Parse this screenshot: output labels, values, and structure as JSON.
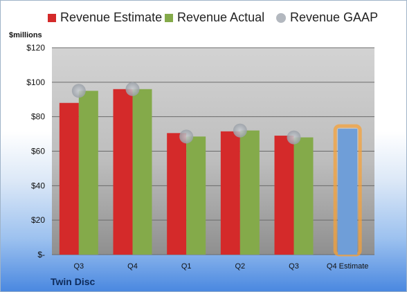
{
  "chart_data": {
    "type": "bar",
    "categories": [
      "Q3",
      "Q4",
      "Q1",
      "Q2",
      "Q3",
      "Q4 Estimate"
    ],
    "series": [
      {
        "name": "Revenue Estimate",
        "color": "#d42a2a",
        "values": [
          88,
          96,
          70.5,
          71.5,
          69,
          null
        ]
      },
      {
        "name": "Revenue Actual",
        "color": "#84aa4a",
        "values": [
          95,
          96,
          68.5,
          72,
          68,
          73
        ]
      },
      {
        "name": "Revenue GAAP",
        "color": "#b3b8bf",
        "values": [
          95,
          96,
          68.5,
          72,
          68,
          null
        ]
      }
    ],
    "estimate_bar_color": "#6f9ed8",
    "estimate_glow_color": "#f5a23a",
    "y_ticks": [
      "$-",
      "$20",
      "$40",
      "$60",
      "$80",
      "$100",
      "$120"
    ],
    "ylim": [
      0,
      120
    ],
    "ylabel": "$millions",
    "legend_position": "top",
    "grid": true
  },
  "company_name": "Twin Disc"
}
